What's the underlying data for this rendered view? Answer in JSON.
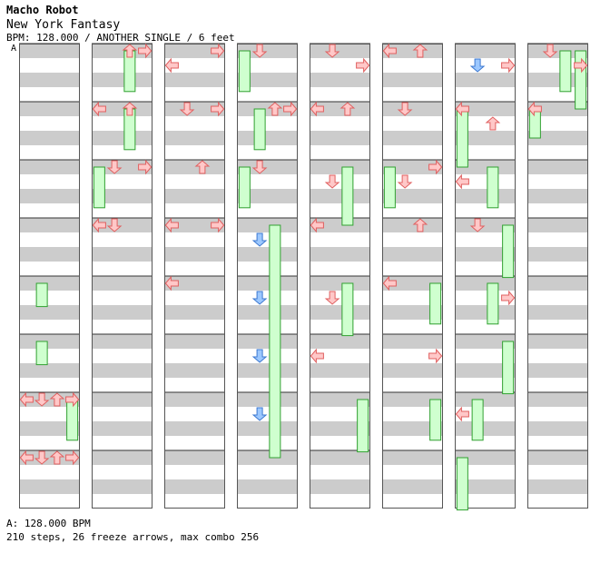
{
  "header": {
    "artist": "Macho Robot",
    "title": "New York Fantasy",
    "meta": "BPM: 128.000 / ANOTHER SINGLE / 6 feet"
  },
  "section_label": "A",
  "footer": {
    "bpm_line": "A: 128.000 BPM",
    "stats_line": "210 steps, 26 freeze arrows, max combo 256"
  },
  "colors": {
    "arrow_red_fill": "#ffc8c8",
    "arrow_red_stroke": "#e06060",
    "arrow_blue_fill": "#9cc8ff",
    "arrow_blue_stroke": "#3c78d0",
    "freeze_fill": "#cfffcf",
    "freeze_stroke": "#30a030",
    "stripe_gray": "#cccccc"
  },
  "chart_data": {
    "type": "step-chart",
    "columns": 8,
    "measures_per_column": 8,
    "lanes": [
      "left",
      "down",
      "up",
      "right"
    ],
    "columns_notes": [
      [
        [
          6,
          0,
          "L",
          0
        ],
        [
          6,
          1,
          "D",
          0
        ],
        [
          6,
          2,
          "U",
          0
        ],
        [
          6,
          3,
          "R",
          0
        ],
        [
          7,
          0,
          "L",
          0
        ],
        [
          7,
          3,
          "R",
          0
        ],
        [
          7,
          1,
          "D",
          0
        ],
        [
          7,
          2,
          "U",
          0
        ]
      ],
      [
        [
          0,
          3,
          "R",
          0
        ],
        [
          0,
          2,
          "U",
          0
        ],
        [
          1,
          0,
          "L",
          0
        ],
        [
          1,
          2,
          "U",
          0
        ],
        [
          2,
          1,
          "D",
          0
        ],
        [
          2,
          3,
          "R",
          0
        ],
        [
          3,
          0,
          "L",
          0
        ],
        [
          3,
          1,
          "D",
          0
        ]
      ],
      [
        [
          0,
          3,
          "R",
          0
        ],
        [
          0,
          0,
          "L",
          1
        ],
        [
          1,
          3,
          "R",
          0
        ],
        [
          1,
          1,
          "D",
          0
        ],
        [
          2,
          2,
          "U",
          0
        ],
        [
          3,
          0,
          "L",
          0
        ],
        [
          3,
          3,
          "R",
          0
        ],
        [
          4,
          0,
          "L",
          0
        ]
      ],
      [
        [
          0,
          1,
          "D",
          0
        ],
        [
          1,
          3,
          "R",
          0
        ],
        [
          1,
          2,
          "U",
          0
        ],
        [
          2,
          1,
          "D",
          0
        ],
        [
          3,
          1,
          "D",
          1
        ],
        [
          4,
          1,
          "D",
          1
        ],
        [
          5,
          1,
          "D",
          1
        ],
        [
          6,
          1,
          "D",
          1
        ]
      ],
      [
        [
          0,
          1,
          "D",
          0
        ],
        [
          0,
          3,
          "R",
          1
        ],
        [
          1,
          0,
          "L",
          0
        ],
        [
          1,
          2,
          "U",
          0
        ],
        [
          2,
          1,
          "D",
          1
        ],
        [
          3,
          0,
          "L",
          0
        ],
        [
          4,
          1,
          "D",
          1
        ],
        [
          5,
          0,
          "L",
          1
        ]
      ],
      [
        [
          0,
          2,
          "U",
          0
        ],
        [
          0,
          0,
          "L",
          0
        ],
        [
          1,
          1,
          "D",
          0
        ],
        [
          2,
          3,
          "R",
          0
        ],
        [
          2,
          1,
          "D",
          1
        ],
        [
          3,
          2,
          "U",
          0
        ],
        [
          4,
          0,
          "L",
          0
        ],
        [
          5,
          3,
          "R",
          1
        ]
      ],
      [
        [
          0,
          1,
          "D",
          1
        ],
        [
          0,
          3,
          "R",
          1
        ],
        [
          1,
          0,
          "L",
          0
        ],
        [
          1,
          2,
          "U",
          1
        ],
        [
          2,
          0,
          "L",
          1
        ],
        [
          3,
          1,
          "D",
          0
        ],
        [
          4,
          3,
          "R",
          1
        ],
        [
          6,
          0,
          "L",
          1
        ]
      ],
      [
        [
          0,
          1,
          "D",
          0
        ],
        [
          0,
          3,
          "R",
          1
        ],
        [
          1,
          0,
          "L",
          0
        ]
      ]
    ],
    "freezes": [
      [
        [
          4,
          1,
          4.4
        ],
        [
          5,
          1,
          5.4
        ],
        [
          6,
          3,
          6.7
        ]
      ],
      [
        [
          0,
          2,
          0.7
        ],
        [
          1,
          2,
          1.7
        ],
        [
          2,
          0,
          2.7
        ]
      ],
      [],
      [
        [
          0,
          0,
          0.7
        ],
        [
          1,
          1,
          1.7
        ],
        [
          2,
          0,
          2.7
        ],
        [
          3,
          2,
          7.0
        ]
      ],
      [
        [
          2,
          2,
          3.0
        ],
        [
          4,
          2,
          4.9
        ],
        [
          6,
          3,
          6.9
        ]
      ],
      [
        [
          2,
          0,
          2.7
        ],
        [
          4,
          3,
          4.7
        ],
        [
          6,
          3,
          6.7
        ]
      ],
      [
        [
          0,
          2,
          0.0
        ],
        [
          1,
          0,
          2.0
        ],
        [
          2,
          2,
          2.7
        ],
        [
          3,
          3,
          3.9
        ],
        [
          4,
          2,
          4.7
        ],
        [
          5,
          3,
          5.9
        ],
        [
          6,
          1,
          6.7
        ],
        [
          7,
          0,
          7.9
        ]
      ],
      [
        [
          0,
          2,
          0.7
        ],
        [
          0,
          3,
          1.0
        ],
        [
          1,
          0,
          1.5
        ]
      ]
    ]
  }
}
